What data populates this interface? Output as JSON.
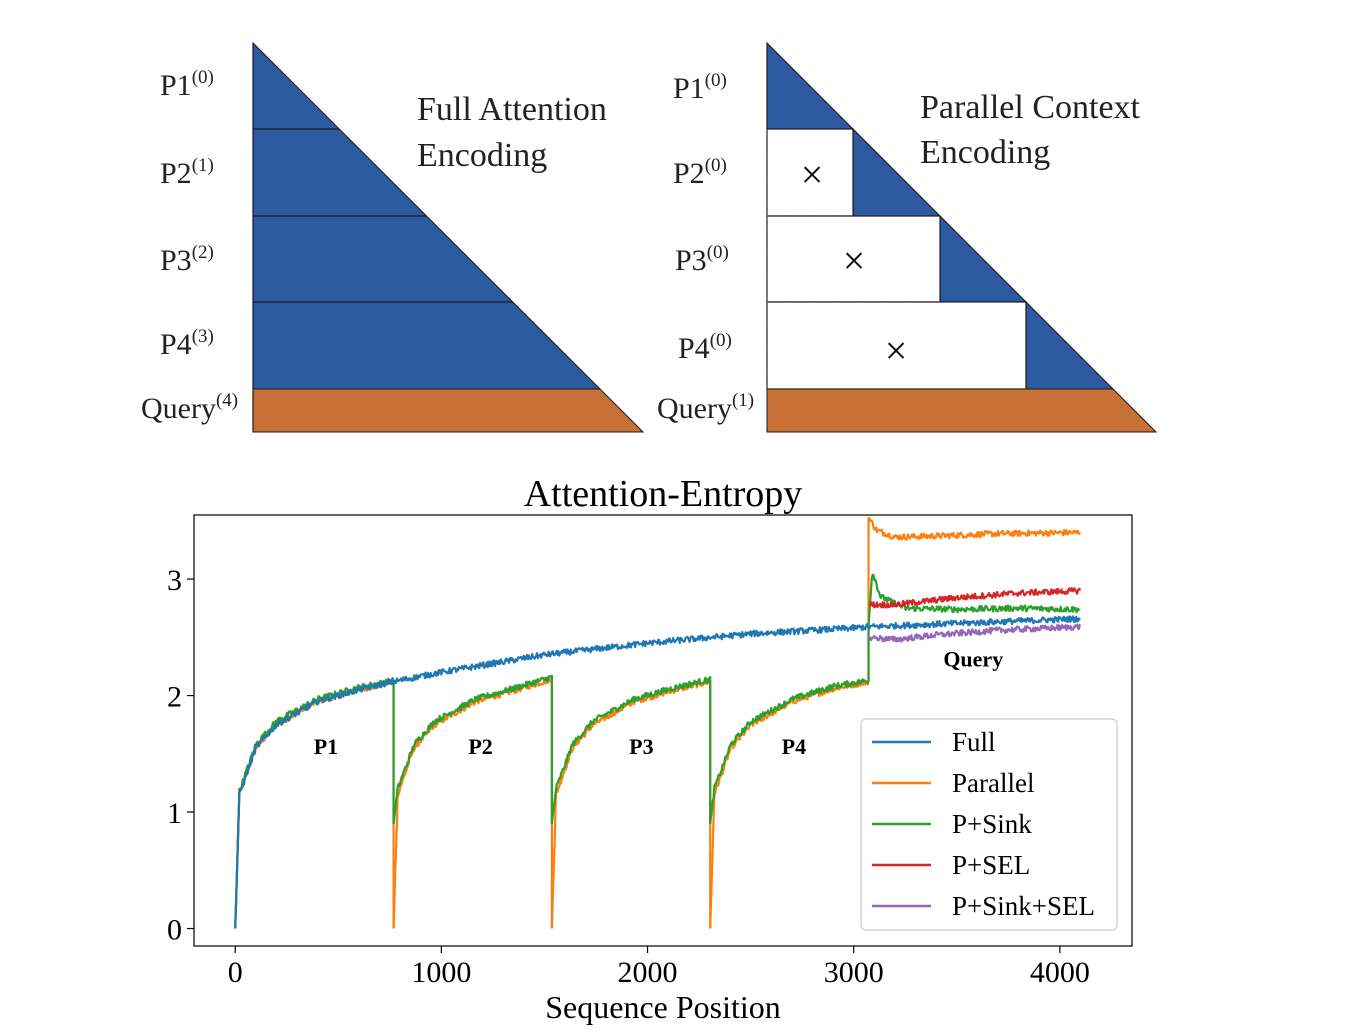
{
  "diagram": {
    "full": {
      "title_line1": "Full Attention",
      "title_line2": "Encoding",
      "rows": [
        {
          "base": "P1",
          "sup": "(0)"
        },
        {
          "base": "P2",
          "sup": "(1)"
        },
        {
          "base": "P3",
          "sup": "(2)"
        },
        {
          "base": "P4",
          "sup": "(3)"
        },
        {
          "base": "Query",
          "sup": "(4)"
        }
      ]
    },
    "parallel": {
      "title_line1": "Parallel Context",
      "title_line2": "Encoding",
      "rows": [
        {
          "base": "P1",
          "sup": "(0)"
        },
        {
          "base": "P2",
          "sup": "(0)"
        },
        {
          "base": "P3",
          "sup": "(0)"
        },
        {
          "base": "P4",
          "sup": "(0)"
        },
        {
          "base": "Query",
          "sup": "(1)"
        }
      ],
      "mask_symbol": "×"
    },
    "colors": {
      "passage": "#2c5aa0",
      "query": "#c87137"
    }
  },
  "chart_data": {
    "type": "line",
    "title": "Attention-Entropy",
    "xlabel": "Sequence Position",
    "ylabel": "",
    "xlim": [
      -200,
      4350
    ],
    "ylim": [
      -0.15,
      3.55
    ],
    "xticks": [
      0,
      1000,
      2000,
      3000,
      4000
    ],
    "yticks": [
      0,
      1,
      2,
      3
    ],
    "grid": false,
    "legend_position": "lower-right",
    "segment_length": 768,
    "query_start": 3072,
    "query_end": 4096,
    "annotations": [
      {
        "text": "P1",
        "x": 440,
        "y": 1.5
      },
      {
        "text": "P2",
        "x": 1190,
        "y": 1.5
      },
      {
        "text": "P3",
        "x": 1970,
        "y": 1.5
      },
      {
        "text": "P4",
        "x": 2710,
        "y": 1.5
      },
      {
        "text": "Query",
        "x": 3580,
        "y": 2.25
      }
    ],
    "series": [
      {
        "name": "Full",
        "color": "#1f77b4",
        "points": [
          [
            0,
            0
          ],
          [
            20,
            1.15
          ],
          [
            100,
            1.55
          ],
          [
            200,
            1.75
          ],
          [
            400,
            1.95
          ],
          [
            600,
            2.05
          ],
          [
            768,
            2.12
          ],
          [
            1000,
            2.2
          ],
          [
            1500,
            2.35
          ],
          [
            2000,
            2.45
          ],
          [
            2500,
            2.53
          ],
          [
            3000,
            2.58
          ],
          [
            3072,
            2.59
          ],
          [
            3500,
            2.62
          ],
          [
            4096,
            2.66
          ]
        ]
      },
      {
        "name": "Parallel",
        "color": "#ff7f0e",
        "segments": [
          {
            "points": [
              [
                0,
                0
              ],
              [
                20,
                1.15
              ],
              [
                100,
                1.55
              ],
              [
                200,
                1.75
              ],
              [
                400,
                1.95
              ],
              [
                600,
                2.05
              ],
              [
                768,
                2.12
              ]
            ]
          },
          {
            "points": [
              [
                768,
                0
              ],
              [
                788,
                1.15
              ],
              [
                868,
                1.55
              ],
              [
                968,
                1.75
              ],
              [
                1168,
                1.95
              ],
              [
                1368,
                2.05
              ],
              [
                1536,
                2.14
              ]
            ]
          },
          {
            "points": [
              [
                1536,
                0
              ],
              [
                1556,
                1.15
              ],
              [
                1636,
                1.55
              ],
              [
                1736,
                1.75
              ],
              [
                1936,
                1.95
              ],
              [
                2136,
                2.05
              ],
              [
                2304,
                2.12
              ]
            ]
          },
          {
            "points": [
              [
                2304,
                0
              ],
              [
                2324,
                1.15
              ],
              [
                2404,
                1.55
              ],
              [
                2504,
                1.75
              ],
              [
                2704,
                1.95
              ],
              [
                2904,
                2.06
              ],
              [
                3072,
                2.12
              ]
            ]
          },
          {
            "points": [
              [
                3072,
                3.53
              ],
              [
                3110,
                3.42
              ],
              [
                3200,
                3.36
              ],
              [
                3400,
                3.37
              ],
              [
                3700,
                3.39
              ],
              [
                4096,
                3.4
              ]
            ]
          }
        ]
      },
      {
        "name": "P+Sink",
        "color": "#2ca02c",
        "segments": [
          {
            "points": [
              [
                0,
                0
              ],
              [
                20,
                1.18
              ],
              [
                100,
                1.58
              ],
              [
                200,
                1.78
              ],
              [
                400,
                1.97
              ],
              [
                600,
                2.07
              ],
              [
                768,
                2.13
              ]
            ]
          },
          {
            "points": [
              [
                768,
                0.9
              ],
              [
                788,
                1.2
              ],
              [
                868,
                1.58
              ],
              [
                968,
                1.78
              ],
              [
                1168,
                1.97
              ],
              [
                1368,
                2.07
              ],
              [
                1536,
                2.16
              ]
            ]
          },
          {
            "points": [
              [
                1536,
                0.9
              ],
              [
                1556,
                1.2
              ],
              [
                1636,
                1.58
              ],
              [
                1736,
                1.78
              ],
              [
                1936,
                1.97
              ],
              [
                2136,
                2.07
              ],
              [
                2304,
                2.14
              ]
            ]
          },
          {
            "points": [
              [
                2304,
                0.9
              ],
              [
                2324,
                1.2
              ],
              [
                2404,
                1.58
              ],
              [
                2504,
                1.78
              ],
              [
                2704,
                1.97
              ],
              [
                2904,
                2.08
              ],
              [
                3072,
                2.13
              ]
            ]
          },
          {
            "points": [
              [
                3072,
                2.6
              ],
              [
                3090,
                3.07
              ],
              [
                3130,
                2.85
              ],
              [
                3250,
                2.75
              ],
              [
                3500,
                2.74
              ],
              [
                3800,
                2.75
              ],
              [
                4096,
                2.74
              ]
            ]
          }
        ]
      },
      {
        "name": "P+SEL",
        "color": "#d62728",
        "segments": [
          {
            "points": [
              [
                3072,
                2.78
              ],
              [
                3200,
                2.78
              ],
              [
                3300,
                2.8
              ],
              [
                3500,
                2.84
              ],
              [
                3800,
                2.88
              ],
              [
                4096,
                2.9
              ]
            ]
          }
        ]
      },
      {
        "name": "P+Sink+SEL",
        "color": "#9467bd",
        "segments": [
          {
            "points": [
              [
                3072,
                2.5
              ],
              [
                3200,
                2.48
              ],
              [
                3400,
                2.52
              ],
              [
                3700,
                2.56
              ],
              [
                4096,
                2.59
              ]
            ]
          }
        ]
      }
    ]
  }
}
